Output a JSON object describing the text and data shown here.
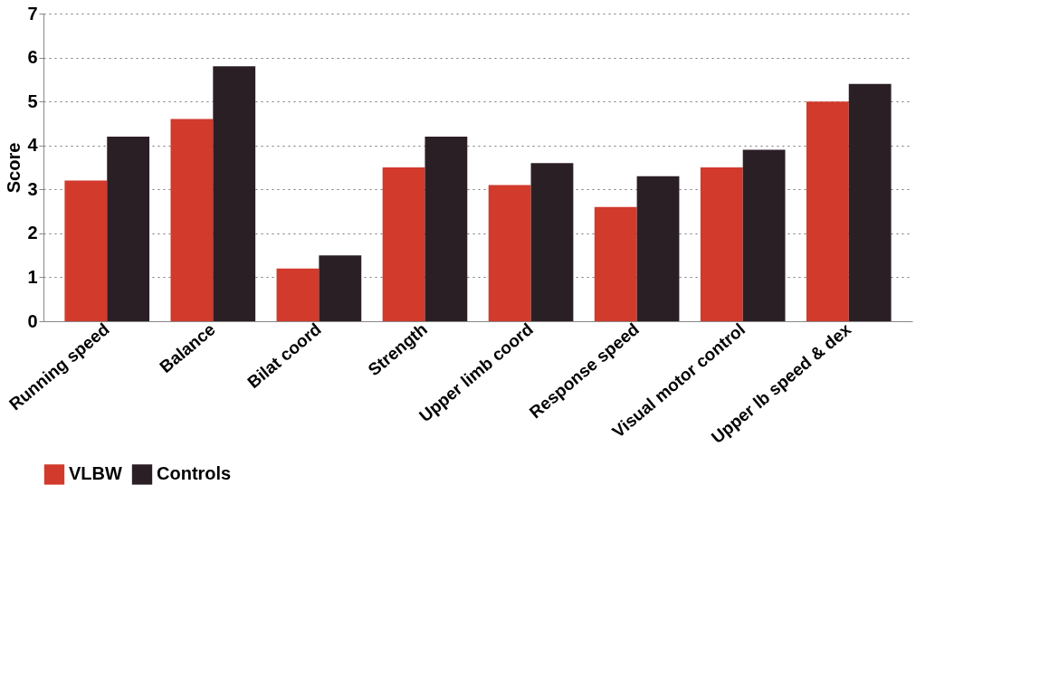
{
  "chart_data": {
    "type": "bar",
    "ylabel": "Score",
    "categories": [
      "Running speed",
      "Balance",
      "Bilat coord",
      "Strength",
      "Upper limb coord",
      "Response speed",
      "Visual motor control",
      "Upper lb speed & dex"
    ],
    "series": [
      {
        "name": "VLBW",
        "color": "#d23a2c",
        "values": [
          3.2,
          4.6,
          1.2,
          3.5,
          3.1,
          2.6,
          3.5,
          5.0
        ]
      },
      {
        "name": "Controls",
        "color": "#2b1f26",
        "values": [
          4.2,
          5.8,
          1.5,
          4.2,
          3.6,
          3.3,
          3.9,
          5.4
        ]
      }
    ],
    "ylim": [
      0,
      7
    ],
    "yticks": [
      0,
      1,
      2,
      3,
      4,
      5,
      6,
      7
    ],
    "grid": "y",
    "legend": "bottom"
  }
}
